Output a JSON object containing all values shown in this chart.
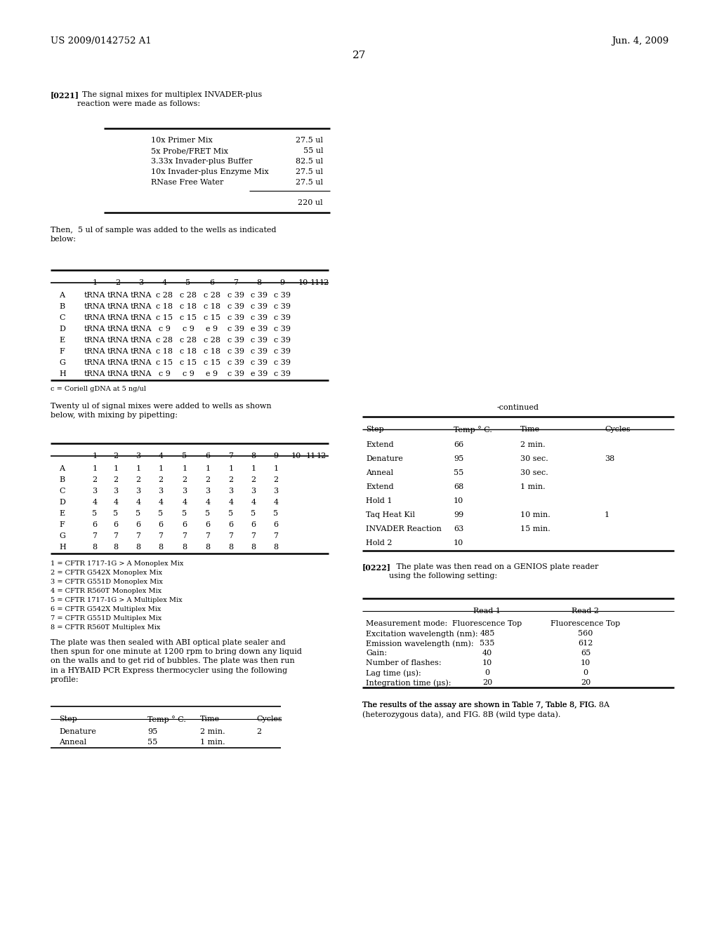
{
  "header_left": "US 2009/0142752 A1",
  "header_right": "Jun. 4, 2009",
  "page_number": "27",
  "background_color": "#ffffff",
  "para_0221_bold": "[0221]",
  "para_0221_rest": "  The signal mixes for multiplex INVADER-plus\nreaction were made as follows:",
  "table1_rows": [
    [
      "10x Primer Mix",
      "27.5 ul"
    ],
    [
      "5x Probe/FRET Mix",
      "55 ul"
    ],
    [
      "3.33x Invader-plus Buffer",
      "82.5 ul"
    ],
    [
      "10x Invader-plus Enzyme Mix",
      "27.5 ul"
    ],
    [
      "RNase Free Water",
      "27.5 ul"
    ],
    [
      "",
      "220 ul"
    ]
  ],
  "para_then": "Then,  5 ul of sample was added to the wells as indicated\nbelow:",
  "table2_header": [
    "",
    "1",
    "2",
    "3",
    "4",
    "5",
    "6",
    "7",
    "8",
    "9",
    "10",
    "11",
    "12"
  ],
  "table2_rows": [
    [
      "A",
      "tRNA",
      "tRNA",
      "tRNA",
      "c 28",
      "c 28",
      "c 28",
      "c 39",
      "c 39",
      "c 39",
      "",
      "",
      ""
    ],
    [
      "B",
      "tRNA",
      "tRNA",
      "tRNA",
      "c 18",
      "c 18",
      "c 18",
      "c 39",
      "c 39",
      "c 39",
      "",
      "",
      ""
    ],
    [
      "C",
      "tRNA",
      "tRNA",
      "tRNA",
      "c 15",
      "c 15",
      "c 15",
      "c 39",
      "c 39",
      "c 39",
      "",
      "",
      ""
    ],
    [
      "D",
      "tRNA",
      "tRNA",
      "tRNA",
      "c 9",
      "c 9",
      "e 9",
      "c 39",
      "e 39",
      "c 39",
      "",
      "",
      ""
    ],
    [
      "E",
      "tRNA",
      "tRNA",
      "tRNA",
      "c 28",
      "c 28",
      "c 28",
      "c 39",
      "c 39",
      "c 39",
      "",
      "",
      ""
    ],
    [
      "F",
      "tRNA",
      "tRNA",
      "tRNA",
      "c 18",
      "c 18",
      "c 18",
      "c 39",
      "c 39",
      "c 39",
      "",
      "",
      ""
    ],
    [
      "G",
      "tRNA",
      "tRNA",
      "tRNA",
      "c 15",
      "c 15",
      "c 15",
      "c 39",
      "c 39",
      "c 39",
      "",
      "",
      ""
    ],
    [
      "H",
      "tRNA",
      "tRNA",
      "tRNA",
      "c 9",
      "c 9",
      "e 9",
      "c 39",
      "e 39",
      "c 39",
      "",
      "",
      ""
    ]
  ],
  "table2_note": "c = Coriell gDNA at 5 ng/ul",
  "para_twenty": "Twenty ul of signal mixes were added to wells as shown\nbelow, with mixing by pipetting:",
  "table3_header": [
    "",
    "1",
    "2",
    "3",
    "4",
    "5",
    "6",
    "7",
    "8",
    "9",
    "10",
    "11",
    "12"
  ],
  "table3_rows": [
    [
      "A",
      "1",
      "1",
      "1",
      "1",
      "1",
      "1",
      "1",
      "1",
      "1",
      "",
      "",
      ""
    ],
    [
      "B",
      "2",
      "2",
      "2",
      "2",
      "2",
      "2",
      "2",
      "2",
      "2",
      "",
      "",
      ""
    ],
    [
      "C",
      "3",
      "3",
      "3",
      "3",
      "3",
      "3",
      "3",
      "3",
      "3",
      "",
      "",
      ""
    ],
    [
      "D",
      "4",
      "4",
      "4",
      "4",
      "4",
      "4",
      "4",
      "4",
      "4",
      "",
      "",
      ""
    ],
    [
      "E",
      "5",
      "5",
      "5",
      "5",
      "5",
      "5",
      "5",
      "5",
      "5",
      "",
      "",
      ""
    ],
    [
      "F",
      "6",
      "6",
      "6",
      "6",
      "6",
      "6",
      "6",
      "6",
      "6",
      "",
      "",
      ""
    ],
    [
      "G",
      "7",
      "7",
      "7",
      "7",
      "7",
      "7",
      "7",
      "7",
      "7",
      "",
      "",
      ""
    ],
    [
      "H",
      "8",
      "8",
      "8",
      "8",
      "8",
      "8",
      "8",
      "8",
      "8",
      "",
      "",
      ""
    ]
  ],
  "table3_notes": [
    "1 = CFTR 1717-1G > A Monoplex Mix",
    "2 = CFTR G542X Monoplex Mix",
    "3 = CFTR G551D Monoplex Mix",
    "4 = CFTR R560T Monoplex Mix",
    "5 = CFTR 1717-1G > A Multiplex Mix",
    "6 = CFTR G542X Multiplex Mix",
    "7 = CFTR G551D Multiplex Mix",
    "8 = CFTR R560T Multiplex Mix"
  ],
  "para_plate": "The plate was then sealed with ABI optical plate sealer and\nthen spun for one minute at 1200 rpm to bring down any liquid\non the walls and to get rid of bubbles. The plate was then run\nin a HYBAID PCR Express thermocycler using the following\nprofile:",
  "table4_header": [
    "Step",
    "Temp ° C.",
    "Time",
    "Cycles"
  ],
  "table4_rows": [
    [
      "Denature",
      "95",
      "2 min.",
      "2"
    ],
    [
      "Anneal",
      "55",
      "1 min.",
      ""
    ]
  ],
  "continued_label": "-continued",
  "table5_header": [
    "Step",
    "Temp ° C.",
    "Time",
    "Cycles"
  ],
  "table5_rows": [
    [
      "Extend",
      "66",
      "2 min.",
      ""
    ],
    [
      "Denature",
      "95",
      "30 sec.",
      "38"
    ],
    [
      "Anneal",
      "55",
      "30 sec.",
      ""
    ],
    [
      "Extend",
      "68",
      "1 min.",
      ""
    ],
    [
      "Hold 1",
      "10",
      "",
      ""
    ],
    [
      "Taq Heat Kil",
      "99",
      "10 min.",
      "1"
    ],
    [
      "INVADER Reaction",
      "63",
      "15 min.",
      ""
    ],
    [
      "Hold 2",
      "10",
      "",
      ""
    ]
  ],
  "para_0222_bold": "[0222]",
  "para_0222_rest": "   The plate was then read on a GENIOS plate reader\nusing the following setting:",
  "table6_header": [
    "",
    "Read 1",
    "Read 2"
  ],
  "table6_rows": [
    [
      "Measurement mode:",
      "Fluorescence Top",
      "Fluorescence Top"
    ],
    [
      "Excitation wavelength (nm):",
      "485",
      "560"
    ],
    [
      "Emission wavelength (nm):",
      "535",
      "612"
    ],
    [
      "Gain:",
      "40",
      "65"
    ],
    [
      "Number of flashes:",
      "10",
      "10"
    ],
    [
      "Lag time (μs):",
      "0",
      "0"
    ],
    [
      "Integration time (μs):",
      "20",
      "20"
    ]
  ],
  "para_results_bold": "The results of the assay are shown in Table 7, Table 8, FIG. ",
  "para_results_bold2": "8",
  "para_results_rest": "A\n(heterozygous data), and FIG. ",
  "para_results_bold3": "8",
  "para_results_rest2": "B (wild type data)."
}
